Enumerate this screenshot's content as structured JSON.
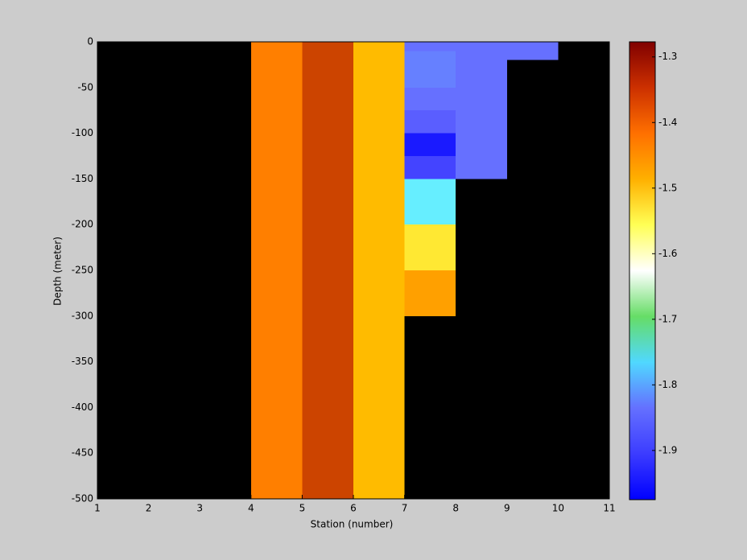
{
  "chart_data": {
    "type": "heatmap",
    "xlabel": "Station (number)",
    "ylabel": "Depth (meter)",
    "xlim": [
      1,
      11
    ],
    "ylim": [
      -500,
      0
    ],
    "xticks": [
      1,
      2,
      3,
      4,
      5,
      6,
      7,
      8,
      9,
      10,
      11
    ],
    "yticks": [
      0,
      -50,
      -100,
      -150,
      -200,
      -250,
      -300,
      -350,
      -400,
      -450,
      -500
    ],
    "background": "#000000",
    "cells": [
      {
        "x": [
          4,
          5
        ],
        "y": [
          0,
          -500
        ],
        "value": -1.38,
        "color": "#ff7f00"
      },
      {
        "x": [
          5,
          6
        ],
        "y": [
          0,
          -500
        ],
        "value": -1.33,
        "color": "#cc4400"
      },
      {
        "x": [
          6,
          7
        ],
        "y": [
          0,
          -500
        ],
        "value": -1.44,
        "color": "#ffbb00"
      },
      {
        "x": [
          7,
          10
        ],
        "y": [
          0,
          -20
        ],
        "value": -1.9,
        "color": "#6670ff"
      },
      {
        "x": [
          8,
          9
        ],
        "y": [
          -20,
          -150
        ],
        "value": -1.9,
        "color": "#6670ff"
      },
      {
        "x": [
          7,
          8
        ],
        "y": [
          -10,
          -50
        ],
        "value": -1.88,
        "color": "#6680ff"
      },
      {
        "x": [
          7,
          8
        ],
        "y": [
          -50,
          -75
        ],
        "value": -1.9,
        "color": "#6670ff"
      },
      {
        "x": [
          7,
          8
        ],
        "y": [
          -75,
          -100
        ],
        "value": -1.92,
        "color": "#5a5eff"
      },
      {
        "x": [
          7,
          8
        ],
        "y": [
          -100,
          -125
        ],
        "value": -1.96,
        "color": "#1a1aff"
      },
      {
        "x": [
          7,
          8
        ],
        "y": [
          -125,
          -150
        ],
        "value": -1.93,
        "color": "#4444ff"
      },
      {
        "x": [
          7,
          8
        ],
        "y": [
          -150,
          -200
        ],
        "value": -1.79,
        "color": "#66eeff"
      },
      {
        "x": [
          7,
          8
        ],
        "y": [
          -200,
          -250
        ],
        "value": -1.49,
        "color": "#ffe833"
      },
      {
        "x": [
          7,
          8
        ],
        "y": [
          -250,
          -300
        ],
        "value": -1.42,
        "color": "#ffa000"
      }
    ],
    "clim": [
      -1.975,
      -1.277
    ],
    "cticks": [
      -1.3,
      -1.4,
      -1.5,
      -1.6,
      -1.7,
      -1.8,
      -1.9
    ],
    "colormap": [
      "#0000ff",
      "#3c3cff",
      "#6470ff",
      "#50d8ff",
      "#66dd66",
      "#ffffff",
      "#ffff55",
      "#ffb000",
      "#ff7000",
      "#cc3000",
      "#800000"
    ]
  }
}
